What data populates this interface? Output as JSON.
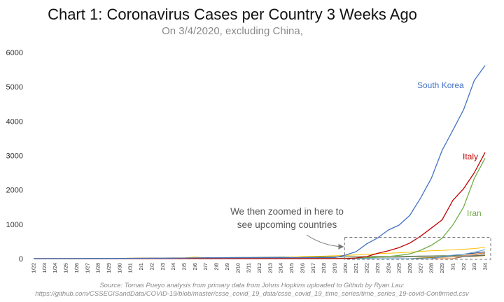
{
  "chart_data": {
    "type": "line",
    "title": "Chart 1: Coronavirus Cases per Country 3 Weeks Ago",
    "subtitle": "On 3/4/2020, excluding China,",
    "ylim": [
      0,
      6000
    ],
    "yticks": [
      0,
      1000,
      2000,
      3000,
      4000,
      5000,
      6000
    ],
    "grid": false,
    "x": [
      "1/22",
      "1/23",
      "1/24",
      "1/25",
      "1/26",
      "1/27",
      "1/28",
      "1/29",
      "1/30",
      "1/31",
      "2/1",
      "2/2",
      "2/3",
      "2/4",
      "2/5",
      "2/6",
      "2/7",
      "2/8",
      "2/9",
      "2/10",
      "2/11",
      "2/12",
      "2/13",
      "2/14",
      "2/15",
      "2/16",
      "2/17",
      "2/18",
      "2/19",
      "2/20",
      "2/21",
      "2/22",
      "2/23",
      "2/24",
      "2/25",
      "2/26",
      "2/27",
      "2/28",
      "2/29",
      "3/1",
      "3/2",
      "3/3",
      "3/4"
    ],
    "series": [
      {
        "name": "South Korea",
        "color": "#4472c4",
        "values": [
          1,
          1,
          2,
          2,
          3,
          4,
          4,
          4,
          4,
          11,
          12,
          15,
          15,
          16,
          19,
          23,
          24,
          24,
          25,
          27,
          28,
          28,
          28,
          28,
          28,
          29,
          30,
          31,
          31,
          104,
          204,
          433,
          602,
          833,
          977,
          1261,
          1766,
          2337,
          3150,
          3736,
          4335,
          5186,
          5621
        ]
      },
      {
        "name": "Italy",
        "color": "#c00000",
        "values": [
          0,
          0,
          0,
          0,
          0,
          0,
          0,
          0,
          0,
          2,
          2,
          2,
          2,
          2,
          2,
          2,
          3,
          3,
          3,
          3,
          3,
          3,
          3,
          3,
          3,
          3,
          3,
          3,
          3,
          3,
          20,
          62,
          155,
          229,
          322,
          453,
          655,
          888,
          1128,
          1694,
          2036,
          2502,
          3089
        ]
      },
      {
        "name": "Iran",
        "color": "#70ad47",
        "values": [
          0,
          0,
          0,
          0,
          0,
          0,
          0,
          0,
          0,
          0,
          0,
          0,
          0,
          0,
          0,
          0,
          0,
          0,
          0,
          0,
          0,
          0,
          0,
          0,
          0,
          0,
          0,
          0,
          2,
          5,
          18,
          28,
          43,
          61,
          95,
          139,
          245,
          388,
          593,
          978,
          1501,
          2336,
          2922
        ]
      },
      {
        "name": "",
        "color": "#ffc000",
        "values": [
          2,
          1,
          2,
          2,
          4,
          4,
          7,
          7,
          11,
          15,
          20,
          20,
          20,
          22,
          22,
          45,
          25,
          25,
          26,
          26,
          26,
          28,
          28,
          29,
          43,
          59,
          66,
          74,
          84,
          94,
          105,
          122,
          147,
          159,
          170,
          189,
          214,
          228,
          241,
          256,
          274,
          293,
          331
        ]
      },
      {
        "name": "",
        "color": "#5b9bd5",
        "values": [
          0,
          0,
          0,
          0,
          0,
          0,
          0,
          0,
          0,
          0,
          0,
          0,
          0,
          0,
          0,
          0,
          0,
          0,
          0,
          0,
          0,
          0,
          0,
          0,
          0,
          0,
          0,
          0,
          0,
          0,
          0,
          0,
          0,
          0,
          0,
          0,
          0,
          0,
          60,
          100,
          130,
          190,
          260
        ]
      },
      {
        "name": "",
        "color": "#264478",
        "values": [
          0,
          0,
          0,
          0,
          0,
          0,
          0,
          0,
          0,
          0,
          0,
          0,
          0,
          0,
          0,
          0,
          0,
          0,
          0,
          0,
          0,
          0,
          0,
          0,
          0,
          0,
          0,
          0,
          0,
          0,
          0,
          0,
          0,
          0,
          0,
          0,
          0,
          0,
          57,
          100,
          130,
          160,
          200
        ]
      },
      {
        "name": "",
        "color": "#a5a5a5",
        "values": [
          1,
          1,
          2,
          2,
          5,
          5,
          5,
          5,
          5,
          6,
          8,
          8,
          11,
          11,
          11,
          12,
          12,
          12,
          12,
          12,
          13,
          13,
          14,
          15,
          15,
          15,
          15,
          15,
          15,
          15,
          15,
          15,
          35,
          35,
          35,
          53,
          53,
          59,
          60,
          62,
          75,
          103,
          150
        ]
      },
      {
        "name": "",
        "color": "#ed7d31",
        "values": [
          0,
          0,
          0,
          0,
          0,
          0,
          0,
          0,
          0,
          0,
          0,
          0,
          0,
          0,
          0,
          0,
          0,
          0,
          0,
          0,
          0,
          0,
          0,
          0,
          0,
          0,
          0,
          0,
          0,
          0,
          0,
          0,
          0,
          0,
          0,
          0,
          0,
          0,
          0,
          0,
          90,
          130,
          170
        ]
      },
      {
        "name": "",
        "color": "#636363",
        "values": [
          0,
          0,
          0,
          0,
          0,
          0,
          0,
          0,
          0,
          0,
          0,
          0,
          0,
          0,
          0,
          0,
          0,
          0,
          0,
          0,
          0,
          0,
          0,
          0,
          0,
          0,
          0,
          0,
          0,
          0,
          0,
          0,
          0,
          0,
          0,
          0,
          0,
          0,
          0,
          0,
          60,
          80,
          110
        ]
      },
      {
        "name": "",
        "color": "#997300",
        "values": [
          0,
          0,
          0,
          0,
          0,
          0,
          0,
          0,
          0,
          0,
          0,
          0,
          0,
          0,
          0,
          0,
          0,
          0,
          0,
          0,
          0,
          0,
          0,
          0,
          0,
          0,
          0,
          0,
          0,
          0,
          0,
          0,
          0,
          0,
          0,
          0,
          20,
          30,
          40,
          50,
          60,
          70,
          90
        ]
      },
      {
        "name": "",
        "color": "#43682b",
        "values": [
          2,
          3,
          3,
          3,
          4,
          5,
          6,
          7,
          8,
          9,
          10,
          12,
          13,
          15,
          16,
          20,
          25,
          25,
          32,
          34,
          37,
          39,
          41,
          43,
          45,
          47,
          48,
          50,
          52,
          55,
          57,
          60,
          62,
          66,
          68,
          72,
          76,
          80,
          84,
          86,
          88,
          90,
          92
        ]
      }
    ],
    "annotation": {
      "lines": [
        "We then zoomed in here to",
        "see upcoming countries"
      ],
      "box_x": [
        "2/20",
        "3/4"
      ],
      "box_y": [
        0,
        620
      ]
    }
  },
  "source": {
    "line1": "Source: Tomas Pueyo analysis from primary data from Johns Hopkins uploaded to Github by Ryan Lau:",
    "line2": "https://github.com/CSSEGISandData/COVID-19/blob/master/csse_covid_19_data/csse_covid_19_time_series/time_series_19-covid-Confirmed.csv"
  }
}
